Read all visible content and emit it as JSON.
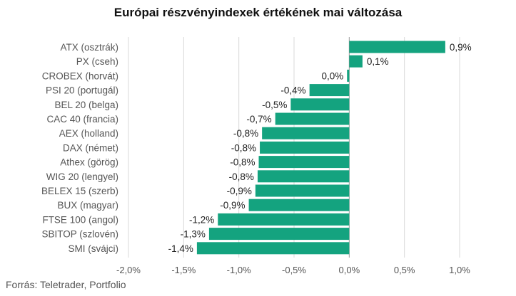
{
  "chart_data": {
    "type": "bar",
    "orientation": "horizontal",
    "title": "Európai részvényindexek értékének mai változása",
    "categories": [
      "ATX (osztrák)",
      "PX (cseh)",
      "CROBEX (horvát)",
      "PSI 20 (portugál)",
      "BEL 20 (belga)",
      "CAC 40 (francia)",
      "AEX (holland)",
      "DAX (német)",
      "Athex (görög)",
      "WIG 20 (lengyel)",
      "BELEX 15 (szerb)",
      "BUX (magyar)",
      "FTSE 100 (angol)",
      "SBITOP (szlovén)",
      "SMI (svájci)"
    ],
    "values": [
      0.87,
      0.12,
      -0.02,
      -0.36,
      -0.53,
      -0.67,
      -0.79,
      -0.81,
      -0.82,
      -0.83,
      -0.85,
      -0.91,
      -1.19,
      -1.27,
      -1.38
    ],
    "data_labels": [
      "0,9%",
      "0,1%",
      "0,0%",
      "-0,4%",
      "-0,5%",
      "-0,7%",
      "-0,8%",
      "-0,8%",
      "-0,8%",
      "-0,8%",
      "-0,9%",
      "-0,9%",
      "-1,2%",
      "-1,3%",
      "-1,4%"
    ],
    "xlim": [
      -2.0,
      1.0
    ],
    "xticks": [
      -2.0,
      -1.5,
      -1.0,
      -0.5,
      0.0,
      0.5,
      1.0
    ],
    "xtick_labels": [
      "-2,0%",
      "-1,5%",
      "-1,0%",
      "-0,5%",
      "0,0%",
      "0,5%",
      "1,0%"
    ],
    "xlabel": "",
    "ylabel": "",
    "grid": true,
    "bar_color": "#14a37f"
  },
  "source": "Forrás: Teletrader, Portfolio"
}
